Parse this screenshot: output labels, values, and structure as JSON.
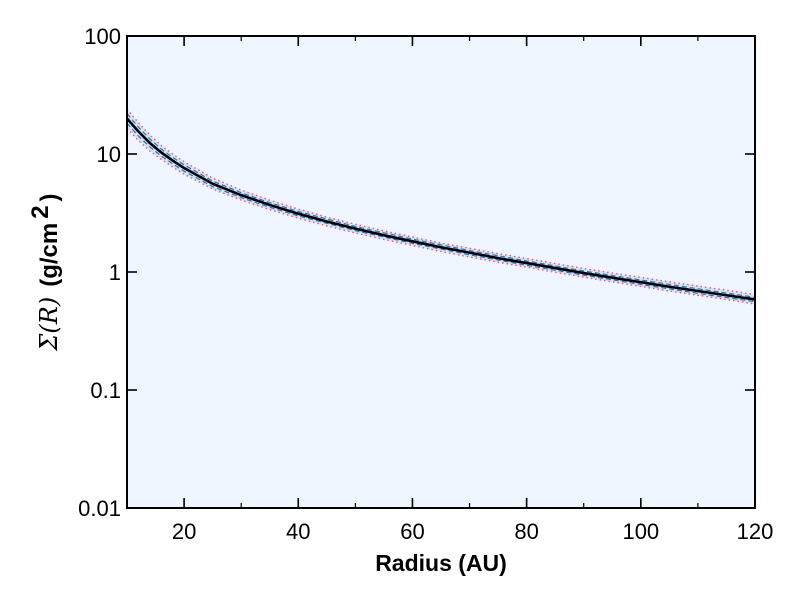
{
  "chart_data": {
    "type": "line",
    "title": "",
    "xlabel": "Radius (AU)",
    "ylabel": {
      "symbol": "Σ(R)",
      "unit_prefix": "(g/cm",
      "unit_exponent": "2",
      "unit_suffix": ")"
    },
    "xlim": [
      10,
      120
    ],
    "ylim": [
      0.01,
      100
    ],
    "yscale": "log",
    "x_ticks": [
      20,
      40,
      60,
      80,
      100,
      120
    ],
    "x_tick_labels": [
      "20",
      "40",
      "60",
      "80",
      "100",
      "120"
    ],
    "y_ticks": [
      0.01,
      0.1,
      1,
      10,
      100
    ],
    "y_tick_labels": [
      "0.01",
      "0.1",
      "1",
      "10",
      "100"
    ],
    "grid": false,
    "legend": "none",
    "plot_background": "#f0f6ff",
    "series": [
      {
        "role": "best-fit",
        "style": "solid",
        "color": "#000000",
        "x": [
          10,
          12,
          14,
          16,
          18,
          20,
          25,
          30,
          35,
          40,
          45,
          50,
          55,
          60,
          65,
          70,
          75,
          80,
          85,
          90,
          95,
          100,
          105,
          110,
          115,
          120
        ],
        "y": [
          20.0,
          15.5,
          12.4,
          10.3,
          8.8,
          7.6,
          5.6,
          4.48,
          3.7,
          3.12,
          2.68,
          2.33,
          2.05,
          1.82,
          1.62,
          1.46,
          1.31,
          1.19,
          1.08,
          0.98,
          0.895,
          0.82,
          0.75,
          0.69,
          0.635,
          0.585
        ]
      },
      {
        "role": "uncertainty-upper",
        "style": "dotted",
        "color": "#ff4d6d",
        "x": [
          10,
          12,
          14,
          16,
          18,
          20,
          25,
          30,
          35,
          40,
          45,
          50,
          55,
          60,
          65,
          70,
          75,
          80,
          85,
          90,
          95,
          100,
          105,
          110,
          115,
          120
        ],
        "y": [
          24.0,
          18.4,
          14.5,
          11.8,
          10.0,
          8.6,
          6.25,
          4.95,
          4.06,
          3.41,
          2.92,
          2.54,
          2.23,
          1.98,
          1.76,
          1.59,
          1.43,
          1.3,
          1.18,
          1.07,
          0.98,
          0.9,
          0.825,
          0.76,
          0.7,
          0.645
        ]
      },
      {
        "role": "uncertainty-lower",
        "style": "dotted",
        "color": "#ff4d6d",
        "x": [
          10,
          12,
          14,
          16,
          18,
          20,
          25,
          30,
          35,
          40,
          45,
          50,
          55,
          60,
          65,
          70,
          75,
          80,
          85,
          90,
          95,
          100,
          105,
          110,
          115,
          120
        ],
        "y": [
          16.5,
          13.0,
          10.6,
          9.0,
          7.75,
          6.75,
          5.05,
          4.07,
          3.38,
          2.86,
          2.46,
          2.14,
          1.89,
          1.68,
          1.49,
          1.34,
          1.21,
          1.1,
          0.995,
          0.905,
          0.825,
          0.755,
          0.69,
          0.635,
          0.585,
          0.535
        ]
      },
      {
        "role": "uncertainty-inner-upper",
        "style": "dashed",
        "color": "#2f6db5",
        "x": [
          10,
          12,
          14,
          16,
          18,
          20,
          25,
          30,
          35,
          40,
          50,
          60,
          70,
          80,
          90,
          100,
          110,
          120
        ],
        "y": [
          22.0,
          16.9,
          13.4,
          11.0,
          9.35,
          8.1,
          5.9,
          4.7,
          3.87,
          3.26,
          2.43,
          1.9,
          1.52,
          1.24,
          1.02,
          0.855,
          0.72,
          0.61
        ]
      },
      {
        "role": "uncertainty-inner-lower",
        "style": "dashed",
        "color": "#2f6db5",
        "x": [
          10,
          12,
          14,
          16,
          18,
          20,
          25,
          30,
          35,
          40,
          50,
          60,
          70,
          80,
          90,
          100,
          110,
          120
        ],
        "y": [
          18.2,
          14.2,
          11.5,
          9.6,
          8.25,
          7.15,
          5.3,
          4.27,
          3.54,
          2.99,
          2.24,
          1.75,
          1.4,
          1.14,
          0.94,
          0.785,
          0.66,
          0.56
        ]
      }
    ]
  }
}
